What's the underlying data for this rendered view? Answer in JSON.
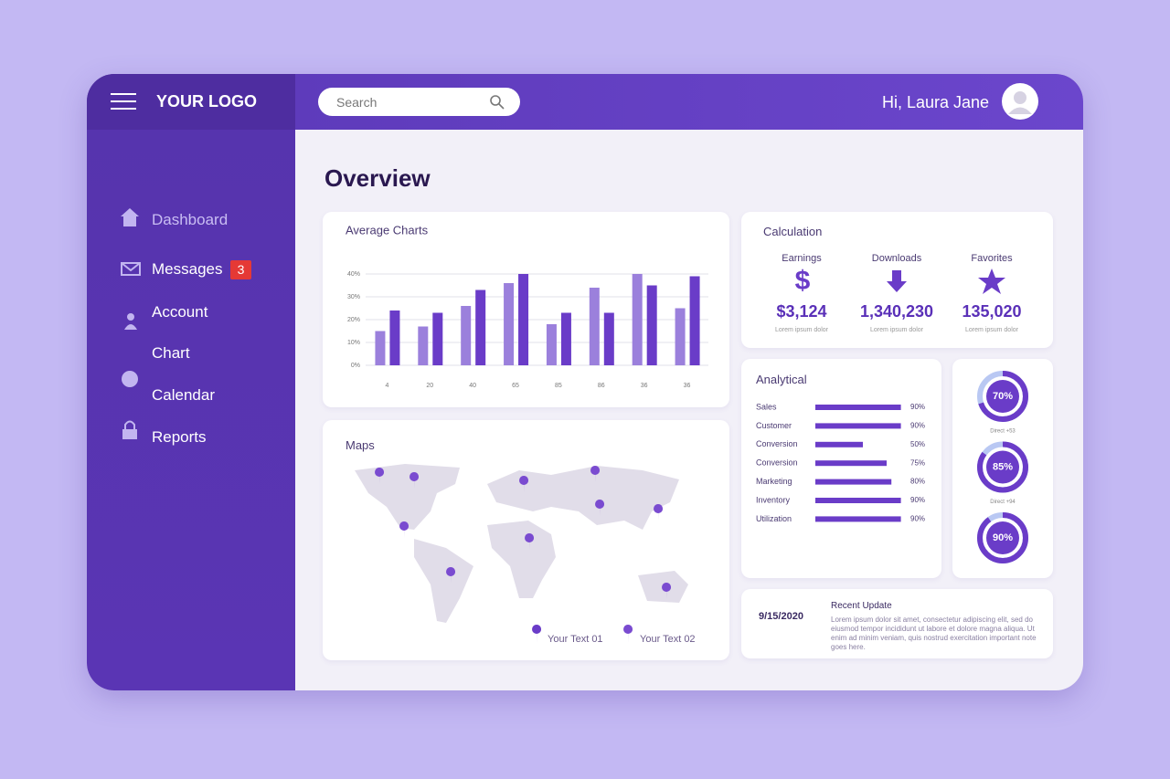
{
  "header": {
    "logo": "YOUR LOGO",
    "search_placeholder": "Search",
    "greeting": "Hi, Laura Jane"
  },
  "sidebar": {
    "items": [
      {
        "label": "Dashboard"
      },
      {
        "label": "Messages",
        "badge": "3"
      },
      {
        "label": "Account"
      },
      {
        "label": "Chart"
      },
      {
        "label": "Calendar"
      },
      {
        "label": "Reports"
      }
    ]
  },
  "page_title": "Overview",
  "chart_data": {
    "type": "bar",
    "title": "Average Charts",
    "categories": [
      "4",
      "20",
      "40",
      "65",
      "85",
      "86",
      "36",
      "36"
    ],
    "series": [
      {
        "color": "#9b80dc",
        "values": [
          15,
          17,
          26,
          36,
          18,
          34,
          40,
          25
        ]
      },
      {
        "color": "#6a3cc8",
        "values": [
          24,
          23,
          33,
          40,
          23,
          23,
          35,
          39
        ]
      }
    ],
    "ylim": [
      0,
      40
    ],
    "yticks": [
      {
        "value": 0,
        "label": "0%"
      },
      {
        "value": 10,
        "label": "10%"
      },
      {
        "value": 20,
        "label": "20%"
      },
      {
        "value": 30,
        "label": "30%"
      },
      {
        "value": 40,
        "label": "40%"
      }
    ],
    "grid": true
  },
  "calculation": {
    "title": "Calculation",
    "items": [
      {
        "label": "Earnings",
        "value": "$3,124",
        "caption": "Lorem ipsum dolor"
      },
      {
        "label": "Downloads",
        "value": "1,340,230",
        "caption": "Lorem ipsum dolor"
      },
      {
        "label": "Favorites",
        "value": "135,020",
        "caption": "Lorem ipsum dolor"
      }
    ]
  },
  "analytical": {
    "title": "Analytical",
    "rows": [
      {
        "label": "Sales",
        "value": 90,
        "value_label": "90%"
      },
      {
        "label": "Customer",
        "value": 90,
        "value_label": "90%"
      },
      {
        "label": "Conversion",
        "value": 50,
        "value_label": "50%"
      },
      {
        "label": "Conversion",
        "value": 75,
        "value_label": "75%"
      },
      {
        "label": "Marketing",
        "value": 80,
        "value_label": "80%"
      },
      {
        "label": "Inventory",
        "value": 90,
        "value_label": "90%"
      },
      {
        "label": "Utilization",
        "value": 90,
        "value_label": "90%"
      }
    ]
  },
  "progress": [
    {
      "value": 70,
      "value_label": "70%",
      "caption": "Direct +53"
    },
    {
      "value": 85,
      "value_label": "85%",
      "caption": "Direct +94"
    },
    {
      "value": 90,
      "value_label": "90%"
    }
  ],
  "maps": {
    "title": "Maps",
    "legend": [
      "Your Text 01",
      "Your Text 02"
    ]
  },
  "recent_update": {
    "date": "9/15/2020",
    "title": "Recent Update",
    "text": "Lorem ipsum dolor sit amet, consectetur adipiscing elit, sed do eiusmod tempor incididunt ut labore et dolore magna aliqua. Ut enim ad minim veniam, quis nostrud exercitation important note goes here."
  }
}
